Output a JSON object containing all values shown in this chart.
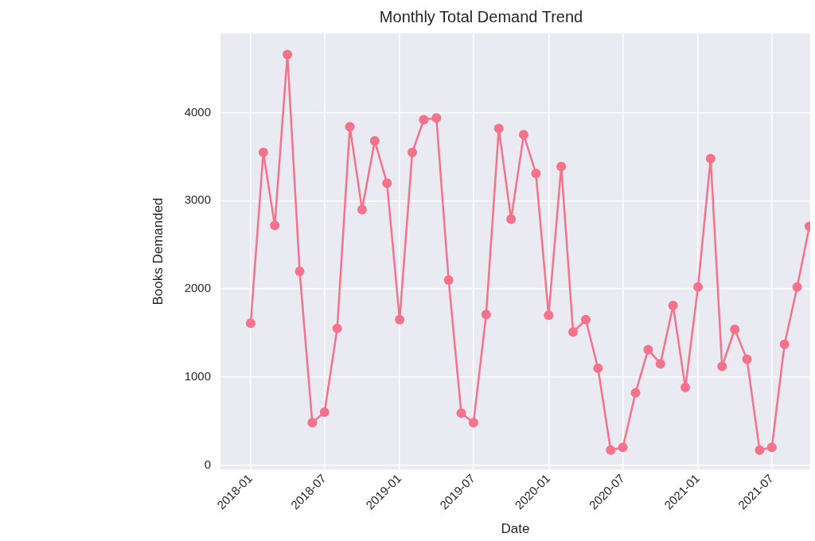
{
  "chart_data": {
    "type": "line",
    "title": "Monthly Total Demand Trend",
    "xlabel": "Date",
    "ylabel": "Books Demanded",
    "x": [
      "2018-01",
      "2018-02",
      "2018-03",
      "2018-04",
      "2018-05",
      "2018-06",
      "2018-07",
      "2018-08",
      "2018-09",
      "2018-10",
      "2018-11",
      "2018-12",
      "2019-01",
      "2019-02",
      "2019-03",
      "2019-04",
      "2019-05",
      "2019-06",
      "2019-07",
      "2019-08",
      "2019-09",
      "2019-10",
      "2019-11",
      "2019-12",
      "2020-01",
      "2020-02",
      "2020-03",
      "2020-04",
      "2020-05",
      "2020-06",
      "2020-07",
      "2020-08",
      "2020-09",
      "2020-10",
      "2020-11",
      "2020-12",
      "2021-01",
      "2021-02",
      "2021-03",
      "2021-04",
      "2021-05",
      "2021-06",
      "2021-07",
      "2021-08",
      "2021-09",
      "2021-10"
    ],
    "series": [
      {
        "color": "#f5728b",
        "values": [
          1610,
          3550,
          2720,
          4660,
          2200,
          480,
          600,
          1550,
          3840,
          2900,
          3680,
          3200,
          1650,
          3550,
          3920,
          3940,
          2100,
          590,
          480,
          1710,
          3820,
          2790,
          3750,
          3310,
          1700,
          3390,
          1510,
          1650,
          1100,
          170,
          200,
          820,
          1310,
          1150,
          1810,
          880,
          2020,
          3480,
          1120,
          1540,
          1200,
          170,
          200,
          1370,
          2020,
          2710
        ]
      }
    ],
    "xlim": [
      "2017-10-19",
      "2021-10-03"
    ],
    "ylim": [
      -50,
      4900
    ],
    "xticks": [
      "2018-01",
      "2018-07",
      "2019-01",
      "2019-07",
      "2020-01",
      "2020-07",
      "2021-01",
      "2021-07"
    ],
    "yticks": [
      0,
      1000,
      2000,
      3000,
      4000
    ],
    "grid": true,
    "legend": false,
    "marker": "circle",
    "line_style": "solid"
  }
}
